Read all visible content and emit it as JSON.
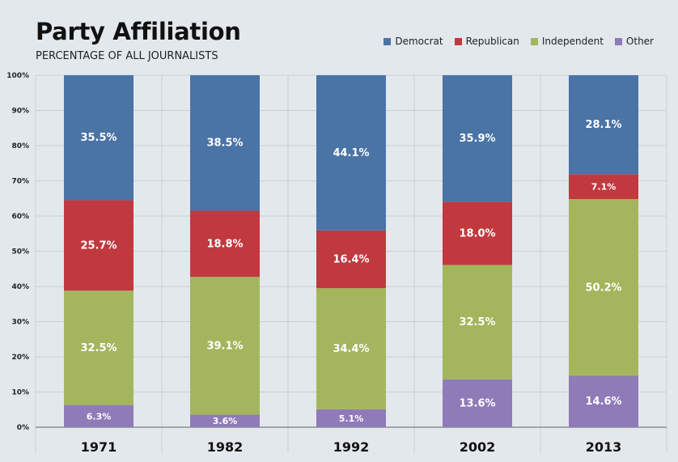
{
  "chart_data": {
    "type": "bar",
    "stacked": true,
    "title": "Party Affiliation",
    "subtitle": "PERCENTAGE OF ALL JOURNALISTS",
    "categories": [
      "1971",
      "1982",
      "1992",
      "2002",
      "2013"
    ],
    "ylim": [
      0,
      100
    ],
    "y_ticks": [
      "0%",
      "10%",
      "20%",
      "30%",
      "40%",
      "50%",
      "60%",
      "70%",
      "80%",
      "90%",
      "100%"
    ],
    "legend_position": "top-right",
    "series": [
      {
        "name": "Other",
        "color": "#8f7bb7",
        "values": [
          6.3,
          3.6,
          5.1,
          13.6,
          14.6
        ],
        "labels": [
          "6.3%",
          "3.6%",
          "5.1%",
          "13.6%",
          "14.6%"
        ]
      },
      {
        "name": "Independent",
        "color": "#a4b65d",
        "values": [
          32.5,
          39.1,
          34.4,
          32.5,
          50.2
        ],
        "labels": [
          "32.5%",
          "39.1%",
          "34.4%",
          "32.5%",
          "50.2%"
        ]
      },
      {
        "name": "Republican",
        "color": "#c0393f",
        "values": [
          25.7,
          18.8,
          16.4,
          18.0,
          7.1
        ],
        "labels": [
          "25.7%",
          "18.8%",
          "16.4%",
          "18.0%",
          "7.1%"
        ]
      },
      {
        "name": "Democrat",
        "color": "#4a73a6",
        "values": [
          35.5,
          38.5,
          44.1,
          35.9,
          28.1
        ],
        "labels": [
          "35.5%",
          "38.5%",
          "44.1%",
          "35.9%",
          "28.1%"
        ]
      }
    ],
    "legend_order": [
      "Democrat",
      "Republican",
      "Independent",
      "Other"
    ]
  }
}
